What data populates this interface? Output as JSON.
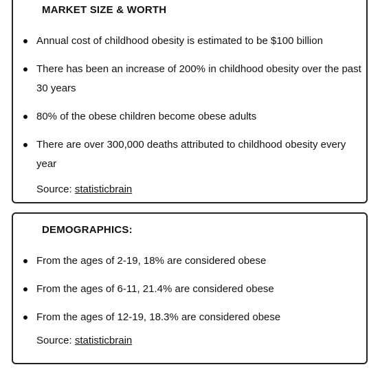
{
  "market": {
    "heading": "MARKET SIZE & WORTH",
    "items": [
      "Annual cost of childhood obesity is estimated to be $100 billion",
      "There has been an increase of 200% in childhood obesity over the past 30 years",
      "80% of the obese children become obese adults",
      "There are over 300,000 deaths attributed to childhood obesity every year"
    ],
    "source_label": "Source:",
    "source_link": "statisticbrain"
  },
  "demographics": {
    "heading": "DEMOGRAPHICS:",
    "items": [
      "From the ages of 2-19, 18% are considered obese",
      "From the ages of 6-11, 21.4% are considered obese",
      "From the ages of 12-19, 18.3% are considered obese"
    ],
    "source_label": "Source:",
    "source_link": "statisticbrain"
  }
}
